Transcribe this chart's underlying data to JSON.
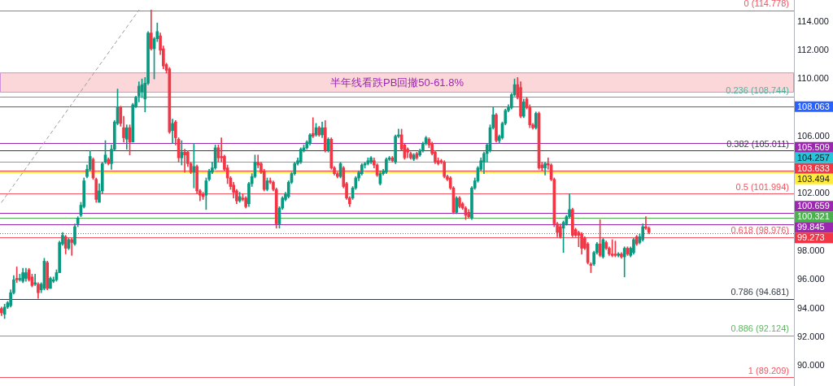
{
  "chart_data": {
    "type": "candlestick",
    "categories": [
      null,
      null,
      null,
      null,
      null,
      null,
      null,
      null,
      null,
      null,
      null,
      null,
      null,
      null,
      null,
      null,
      null,
      null,
      null,
      null,
      null,
      null,
      null,
      null,
      null,
      null,
      null,
      null,
      null,
      null,
      null,
      null,
      null,
      null,
      null,
      null,
      null,
      null,
      null,
      null,
      null,
      null,
      null,
      null,
      null,
      null,
      null,
      null,
      null,
      null,
      null,
      null,
      null,
      null,
      null,
      null,
      null,
      null,
      null,
      null,
      null,
      null,
      null,
      null,
      null,
      null,
      null,
      null,
      null,
      null,
      null,
      null,
      null,
      null,
      null,
      null,
      null,
      null,
      null,
      null,
      null,
      null,
      null,
      null,
      null,
      null,
      null,
      null,
      null,
      null,
      null,
      null,
      null,
      null,
      null,
      null,
      null,
      null,
      null,
      null,
      null,
      null,
      null,
      null,
      null,
      null,
      null,
      null,
      null,
      null,
      null,
      null,
      null,
      null,
      null,
      null,
      null,
      null,
      null,
      null,
      null,
      null,
      null,
      null,
      null,
      null,
      null,
      null,
      null,
      null,
      null,
      null,
      null,
      null,
      null,
      null,
      null,
      null,
      null,
      null,
      null,
      null,
      null,
      null,
      null,
      null,
      null,
      null,
      null,
      null,
      null,
      null,
      null,
      null,
      null,
      null,
      null,
      null,
      null,
      null,
      null,
      null,
      null,
      null,
      null,
      null,
      null,
      null,
      null,
      null,
      null,
      null,
      null,
      null,
      null,
      null,
      null,
      null,
      null,
      null,
      null,
      null,
      null,
      null,
      null,
      null,
      null,
      null,
      null,
      null,
      null,
      null,
      null,
      null,
      null,
      null,
      null,
      null,
      null,
      null,
      null,
      null,
      null,
      null,
      null,
      null,
      null,
      null,
      null,
      null,
      null,
      null,
      null,
      null,
      null,
      null,
      null,
      null,
      null,
      null,
      null,
      null,
      null,
      null,
      null,
      null,
      null,
      null,
      null,
      null,
      null,
      null,
      null,
      null,
      null,
      null,
      null,
      null,
      null,
      null,
      null,
      null,
      null,
      null,
      null,
      null,
      null,
      null,
      null,
      null,
      null,
      null,
      null,
      null,
      null,
      null,
      null,
      null,
      null,
      null
    ],
    "ohlc": [
      [
        94.0,
        94.1,
        93.5,
        93.7
      ],
      [
        93.6,
        94.3,
        93.3,
        94.1
      ],
      [
        94.1,
        94.5,
        94.0,
        94.4
      ],
      [
        94.2,
        95.3,
        94.1,
        95.1
      ],
      [
        95.1,
        96.3,
        95.0,
        96.0
      ],
      [
        96.1,
        96.9,
        95.8,
        96.0
      ],
      [
        96.0,
        96.4,
        95.9,
        96.1
      ],
      [
        95.9,
        96.8,
        95.8,
        96.5
      ],
      [
        96.1,
        96.8,
        95.9,
        96.5
      ],
      [
        96.7,
        96.8,
        95.9,
        96.0
      ],
      [
        96.2,
        96.4,
        95.5,
        95.6
      ],
      [
        95.7,
        96.4,
        95.6,
        95.8
      ],
      [
        95.7,
        95.8,
        94.7,
        95.1
      ],
      [
        95.3,
        95.8,
        95.1,
        95.7
      ],
      [
        95.4,
        97.5,
        95.3,
        97.3
      ],
      [
        97.2,
        97.3,
        95.3,
        95.4
      ],
      [
        95.4,
        96.2,
        95.4,
        96.1
      ],
      [
        95.9,
        96.2,
        95.8,
        96.0
      ],
      [
        96.0,
        96.7,
        95.9,
        96.5
      ],
      [
        96.5,
        98.7,
        96.5,
        98.6
      ],
      [
        98.5,
        99.3,
        98.4,
        99.1
      ],
      [
        99.0,
        99.1,
        97.8,
        98.2
      ],
      [
        98.2,
        98.9,
        98.1,
        98.8
      ],
      [
        98.8,
        98.9,
        97.7,
        98.6
      ],
      [
        98.5,
        99.9,
        98.4,
        99.7
      ],
      [
        99.9,
        100.4,
        99.7,
        100.3
      ],
      [
        100.5,
        101.4,
        100.4,
        101.2
      ],
      [
        101.1,
        103.1,
        101.0,
        102.9
      ],
      [
        103.2,
        104.0,
        103.1,
        103.7
      ],
      [
        103.7,
        105.0,
        103.6,
        104.6
      ],
      [
        104.4,
        104.5,
        103.0,
        103.1
      ],
      [
        103.0,
        103.1,
        101.4,
        101.6
      ],
      [
        101.4,
        102.7,
        101.4,
        102.2
      ],
      [
        102.2,
        104.2,
        102.0,
        104.1
      ],
      [
        104.2,
        105.7,
        104.1,
        104.7
      ],
      [
        104.4,
        104.5,
        104.0,
        104.1
      ],
      [
        104.1,
        105.4,
        103.7,
        105.1
      ],
      [
        105.1,
        107.1,
        105.0,
        107.0
      ],
      [
        106.9,
        109.3,
        106.8,
        108.0
      ],
      [
        108.0,
        108.1,
        106.7,
        106.9
      ],
      [
        106.6,
        107.4,
        105.6,
        105.9
      ],
      [
        105.8,
        106.8,
        105.1,
        106.6
      ],
      [
        106.6,
        106.8,
        104.7,
        105.6
      ],
      [
        105.6,
        108.3,
        105.6,
        108.2
      ],
      [
        108.1,
        108.8,
        108.0,
        108.7
      ],
      [
        108.8,
        109.8,
        108.4,
        109.5
      ],
      [
        109.1,
        110.0,
        108.7,
        109.6
      ],
      [
        108.6,
        110.1,
        107.7,
        109.7
      ],
      [
        109.7,
        113.3,
        109.6,
        113.2
      ],
      [
        113.2,
        114.8,
        112.0,
        112.1
      ],
      [
        112.1,
        112.9,
        110.0,
        112.8
      ],
      [
        112.8,
        113.9,
        112.6,
        113.3
      ],
      [
        113.0,
        113.2,
        111.7,
        112.0
      ],
      [
        112.1,
        112.3,
        110.7,
        110.9
      ],
      [
        111.0,
        111.1,
        110.4,
        110.6
      ],
      [
        110.7,
        110.8,
        106.2,
        106.3
      ],
      [
        106.4,
        107.2,
        105.5,
        106.9
      ],
      [
        107.0,
        107.1,
        105.4,
        105.9
      ],
      [
        105.8,
        105.9,
        104.2,
        104.5
      ],
      [
        104.5,
        105.7,
        104.0,
        104.9
      ],
      [
        104.9,
        105.1,
        103.5,
        104.7
      ],
      [
        104.9,
        105.0,
        103.9,
        104.1
      ],
      [
        104.1,
        104.2,
        103.4,
        103.5
      ],
      [
        103.5,
        105.5,
        102.4,
        103.9
      ],
      [
        103.9,
        104.0,
        102.0,
        102.2
      ],
      [
        102.2,
        102.3,
        101.5,
        101.9
      ],
      [
        102.0,
        102.1,
        101.6,
        101.8
      ],
      [
        101.9,
        103.1,
        100.9,
        102.9
      ],
      [
        103.0,
        103.7,
        102.9,
        103.6
      ],
      [
        103.5,
        104.2,
        103.4,
        103.8
      ],
      [
        103.8,
        105.4,
        103.7,
        105.2
      ],
      [
        105.2,
        105.4,
        104.2,
        104.5
      ],
      [
        104.6,
        105.9,
        104.2,
        104.5
      ],
      [
        104.6,
        104.7,
        103.6,
        103.7
      ],
      [
        103.8,
        104.0,
        102.7,
        103.1
      ],
      [
        103.1,
        103.2,
        102.3,
        102.5
      ],
      [
        102.6,
        102.8,
        101.7,
        102.1
      ],
      [
        102.2,
        102.3,
        101.3,
        101.5
      ],
      [
        101.5,
        102.1,
        101.4,
        101.8
      ],
      [
        101.7,
        102.0,
        101.5,
        101.6
      ],
      [
        101.7,
        101.8,
        101.0,
        101.1
      ],
      [
        101.3,
        102.8,
        101.1,
        102.7
      ],
      [
        102.7,
        103.4,
        102.5,
        103.2
      ],
      [
        103.2,
        104.7,
        103.1,
        104.2
      ],
      [
        104.2,
        104.7,
        103.8,
        104.0
      ],
      [
        104.1,
        104.2,
        103.4,
        103.5
      ],
      [
        103.6,
        103.7,
        102.2,
        102.3
      ],
      [
        102.3,
        103.1,
        102.2,
        102.9
      ],
      [
        102.9,
        103.1,
        102.7,
        102.8
      ],
      [
        102.8,
        102.9,
        102.2,
        102.3
      ],
      [
        102.3,
        102.4,
        99.6,
        99.9
      ],
      [
        99.9,
        101.1,
        99.6,
        101.0
      ],
      [
        101.0,
        101.8,
        100.9,
        101.7
      ],
      [
        101.6,
        102.1,
        101.5,
        102.0
      ],
      [
        101.8,
        102.9,
        101.7,
        102.8
      ],
      [
        102.8,
        103.5,
        102.7,
        103.4
      ],
      [
        103.4,
        104.2,
        103.3,
        104.1
      ],
      [
        104.1,
        104.5,
        104.0,
        104.3
      ],
      [
        104.2,
        105.2,
        104.1,
        105.1
      ],
      [
        105.0,
        105.4,
        104.9,
        105.2
      ],
      [
        105.2,
        105.7,
        105.1,
        105.6
      ],
      [
        105.5,
        106.2,
        105.4,
        106.1
      ],
      [
        106.2,
        107.3,
        105.9,
        106.0
      ],
      [
        106.1,
        106.9,
        106.0,
        106.6
      ],
      [
        106.6,
        106.7,
        106.0,
        106.1
      ],
      [
        106.1,
        107.0,
        105.9,
        106.6
      ],
      [
        106.6,
        107.1,
        104.9,
        105.0
      ],
      [
        105.0,
        105.9,
        104.9,
        105.8
      ],
      [
        105.8,
        105.9,
        103.7,
        103.8
      ],
      [
        103.8,
        103.9,
        103.3,
        103.4
      ],
      [
        103.4,
        103.5,
        103.1,
        103.2
      ],
      [
        103.2,
        104.2,
        103.1,
        104.1
      ],
      [
        103.8,
        103.9,
        102.4,
        102.5
      ],
      [
        102.7,
        102.8,
        101.6,
        101.7
      ],
      [
        101.7,
        101.8,
        101.1,
        101.3
      ],
      [
        101.7,
        102.5,
        101.6,
        102.4
      ],
      [
        102.4,
        103.2,
        102.3,
        103.1
      ],
      [
        103.1,
        103.6,
        102.9,
        103.5
      ],
      [
        103.4,
        104.1,
        103.3,
        104.0
      ],
      [
        104.0,
        104.2,
        103.8,
        104.1
      ],
      [
        104.1,
        104.5,
        104.0,
        104.3
      ],
      [
        104.2,
        104.6,
        104.1,
        104.5
      ],
      [
        104.3,
        104.5,
        103.8,
        104.0
      ],
      [
        104.0,
        104.1,
        103.2,
        103.3
      ],
      [
        102.7,
        103.6,
        102.6,
        103.4
      ],
      [
        103.4,
        103.7,
        103.3,
        103.6
      ],
      [
        103.5,
        104.5,
        103.4,
        104.4
      ],
      [
        104.4,
        104.6,
        104.3,
        104.5
      ],
      [
        104.5,
        104.6,
        104.2,
        104.3
      ],
      [
        104.2,
        106.1,
        104.1,
        106.0
      ],
      [
        106.0,
        106.5,
        105.9,
        106.1
      ],
      [
        106.1,
        106.5,
        105.0,
        105.1
      ],
      [
        105.4,
        105.5,
        104.4,
        104.5
      ],
      [
        105.1,
        105.2,
        104.5,
        104.9
      ],
      [
        104.8,
        104.9,
        104.4,
        104.5
      ],
      [
        104.4,
        104.8,
        104.3,
        104.7
      ],
      [
        104.8,
        104.9,
        104.4,
        104.5
      ],
      [
        104.7,
        105.1,
        104.6,
        105.0
      ],
      [
        105.0,
        105.6,
        104.9,
        105.5
      ],
      [
        105.5,
        106.0,
        105.4,
        105.9
      ],
      [
        105.8,
        105.9,
        105.2,
        105.4
      ],
      [
        105.5,
        105.6,
        104.7,
        104.8
      ],
      [
        104.9,
        105.0,
        104.1,
        104.2
      ],
      [
        104.3,
        104.5,
        104.0,
        104.1
      ],
      [
        104.3,
        104.4,
        104.1,
        104.2
      ],
      [
        104.2,
        104.3,
        103.1,
        103.2
      ],
      [
        103.2,
        103.3,
        102.9,
        103.0
      ],
      [
        103.1,
        103.2,
        102.3,
        102.4
      ],
      [
        102.4,
        102.5,
        100.6,
        100.7
      ],
      [
        100.7,
        101.8,
        100.6,
        101.7
      ],
      [
        101.7,
        101.8,
        101.0,
        101.1
      ],
      [
        101.3,
        101.4,
        100.9,
        101.0
      ],
      [
        101.0,
        101.1,
        100.2,
        100.5
      ],
      [
        100.7,
        100.9,
        100.3,
        100.4
      ],
      [
        100.3,
        102.5,
        100.2,
        102.4
      ],
      [
        102.4,
        103.1,
        102.3,
        102.9
      ],
      [
        102.9,
        103.9,
        102.8,
        103.8
      ],
      [
        103.7,
        104.5,
        103.6,
        104.3
      ],
      [
        104.2,
        104.9,
        103.4,
        104.8
      ],
      [
        104.8,
        105.5,
        104.2,
        105.4
      ],
      [
        105.0,
        106.8,
        104.9,
        106.6
      ],
      [
        106.6,
        108.0,
        106.5,
        107.5
      ],
      [
        107.5,
        107.6,
        105.6,
        105.7
      ],
      [
        105.7,
        106.1,
        105.5,
        106.0
      ],
      [
        105.9,
        107.0,
        105.8,
        106.9
      ],
      [
        106.9,
        107.9,
        106.8,
        107.8
      ],
      [
        107.8,
        108.2,
        107.7,
        108.0
      ],
      [
        108.0,
        109.0,
        107.9,
        108.9
      ],
      [
        108.9,
        110.0,
        108.8,
        109.6
      ],
      [
        109.6,
        110.1,
        108.6,
        108.7
      ],
      [
        109.4,
        109.8,
        107.3,
        107.4
      ],
      [
        107.4,
        108.6,
        107.3,
        108.4
      ],
      [
        108.6,
        108.7,
        107.9,
        108.0
      ],
      [
        108.0,
        108.2,
        106.6,
        106.8
      ],
      [
        106.8,
        106.9,
        106.5,
        106.6
      ],
      [
        106.6,
        107.7,
        106.5,
        107.6
      ],
      [
        107.6,
        107.7,
        103.7,
        103.8
      ],
      [
        104.0,
        104.2,
        103.6,
        103.8
      ],
      [
        103.8,
        104.2,
        103.3,
        104.1
      ],
      [
        104.1,
        104.5,
        103.7,
        104.0
      ],
      [
        104.0,
        104.1,
        102.9,
        103.0
      ],
      [
        103.0,
        103.1,
        99.7,
        99.9
      ],
      [
        99.9,
        100.0,
        99.0,
        99.3
      ],
      [
        99.7,
        99.9,
        98.9,
        99.0
      ],
      [
        99.6,
        100.1,
        97.9,
        100.0
      ],
      [
        99.9,
        100.5,
        99.8,
        100.4
      ],
      [
        100.4,
        102.0,
        100.3,
        100.9
      ],
      [
        100.9,
        101.0,
        99.0,
        99.1
      ],
      [
        99.5,
        99.6,
        99.0,
        99.1
      ],
      [
        99.3,
        99.4,
        98.3,
        99.1
      ],
      [
        99.2,
        99.3,
        97.8,
        98.2
      ],
      [
        98.9,
        99.0,
        98.1,
        98.2
      ],
      [
        98.5,
        98.6,
        97.1,
        97.2
      ],
      [
        97.1,
        97.2,
        96.5,
        97.0
      ],
      [
        97.1,
        98.0,
        97.0,
        97.9
      ],
      [
        97.9,
        98.6,
        97.8,
        98.5
      ],
      [
        98.5,
        100.2,
        97.6,
        97.7
      ],
      [
        97.6,
        98.9,
        97.5,
        98.8
      ],
      [
        98.6,
        98.7,
        98.1,
        98.2
      ],
      [
        98.2,
        98.3,
        97.7,
        97.8
      ],
      [
        97.8,
        98.8,
        97.6,
        97.7
      ],
      [
        97.8,
        98.7,
        97.6,
        97.7
      ],
      [
        97.7,
        97.9,
        97.6,
        97.8
      ],
      [
        97.8,
        97.9,
        97.5,
        97.6
      ],
      [
        97.6,
        98.3,
        96.2,
        98.2
      ],
      [
        98.2,
        98.3,
        97.7,
        97.8
      ],
      [
        97.7,
        98.3,
        97.6,
        98.2
      ],
      [
        97.9,
        98.9,
        97.8,
        98.8
      ],
      [
        99.0,
        99.1,
        98.4,
        98.5
      ],
      [
        98.6,
        99.2,
        98.5,
        99.0
      ],
      [
        98.8,
        99.9,
        98.7,
        99.7
      ],
      [
        99.7,
        100.4,
        99.5,
        99.6
      ],
      [
        99.6,
        99.7,
        99.2,
        99.3
      ],
      null,
      null,
      null,
      null,
      null,
      null,
      null,
      null,
      null,
      null,
      null,
      null,
      null,
      null,
      null,
      null,
      null,
      null,
      null,
      null,
      null,
      null,
      null,
      null,
      null,
      null,
      null,
      null,
      null,
      null,
      null,
      null,
      null,
      null,
      null,
      null,
      null,
      null,
      null,
      null,
      null,
      null,
      null,
      null,
      null,
      null,
      null
    ],
    "colors": [
      "#f23645",
      "#089981",
      "#089981",
      "#089981",
      "#089981",
      "#f23645",
      "#089981",
      "#089981",
      "#089981",
      "#f23645",
      "#f23645",
      "#089981",
      "#f23645",
      "#089981",
      "#089981",
      "#f23645",
      "#089981",
      "#089981",
      "#089981",
      "#089981",
      "#089981",
      "#f23645",
      "#089981",
      "#f23645",
      "#089981",
      "#089981",
      "#089981",
      "#089981",
      "#089981",
      "#089981",
      "#f23645",
      "#f23645",
      "#089981",
      "#089981",
      "#089981",
      "#f23645",
      "#089981",
      "#089981",
      "#089981",
      "#f23645",
      "#f23645",
      "#089981",
      "#f23645",
      "#089981",
      "#089981",
      "#089981",
      "#089981",
      "#089981",
      "#089981",
      "#f23645",
      "#089981",
      "#089981",
      "#f23645",
      "#f23645",
      "#f23645",
      "#f23645",
      "#089981",
      "#f23645",
      "#f23645",
      "#089981",
      "#f23645",
      "#f23645",
      "#f23645",
      "#089981",
      "#f23645",
      "#f23645",
      "#f23645",
      "#089981",
      "#089981",
      "#089981",
      "#089981",
      "#f23645",
      "#f23645",
      "#f23645",
      "#f23645",
      "#f23645",
      "#f23645",
      "#f23645",
      "#089981",
      "#f23645",
      "#f23645",
      "#089981",
      "#089981",
      "#089981",
      "#f23645",
      "#f23645",
      "#f23645",
      "#089981",
      "#f23645",
      "#f23645",
      "#f23645",
      "#089981",
      "#089981",
      "#089981",
      "#089981",
      "#089981",
      "#089981",
      "#089981",
      "#089981",
      "#089981",
      "#089981",
      "#089981",
      "#f23645",
      "#089981",
      "#f23645",
      "#089981",
      "#f23645",
      "#089981",
      "#f23645",
      "#f23645",
      "#f23645",
      "#089981",
      "#f23645",
      "#f23645",
      "#f23645",
      "#089981",
      "#089981",
      "#089981",
      "#089981",
      "#089981",
      "#089981",
      "#089981",
      "#f23645",
      "#f23645",
      "#089981",
      "#089981",
      "#089981",
      "#089981",
      "#f23645",
      "#089981",
      "#089981",
      "#f23645",
      "#f23645",
      "#f23645",
      "#f23645",
      "#089981",
      "#f23645",
      "#089981",
      "#089981",
      "#089981",
      "#f23645",
      "#f23645",
      "#f23645",
      "#f23645",
      "#f23645",
      "#f23645",
      "#f23645",
      "#f23645",
      "#f23645",
      "#089981",
      "#f23645",
      "#f23645",
      "#f23645",
      "#f23645",
      "#089981",
      "#089981",
      "#089981",
      "#089981",
      "#089981",
      "#089981",
      "#089981",
      "#089981",
      "#f23645",
      "#089981",
      "#089981",
      "#089981",
      "#089981",
      "#089981",
      "#089981",
      "#f23645",
      "#f23645",
      "#089981",
      "#f23645",
      "#f23645",
      "#f23645",
      "#089981",
      "#f23645",
      "#f23645",
      "#089981",
      "#f23645",
      "#f23645",
      "#f23645",
      "#f23645",
      "#f23645",
      "#089981",
      "#089981",
      "#089981",
      "#f23645",
      "#f23645",
      "#f23645",
      "#f23645",
      "#f23645",
      "#f23645",
      "#f23645",
      "#089981",
      "#089981",
      "#f23645",
      "#089981",
      "#f23645",
      "#f23645",
      "#f23645",
      "#f23645",
      "#089981",
      "#f23645",
      "#089981",
      "#f23645",
      "#089981",
      "#089981",
      "#f23645",
      "#089981",
      "#089981",
      "#f23645",
      "#f23645",
      null,
      null,
      null,
      null,
      null,
      null,
      null,
      null,
      null,
      null,
      null,
      null,
      null,
      null,
      null,
      null,
      null,
      null,
      null,
      null,
      null,
      null,
      null,
      null,
      null,
      null,
      null,
      null,
      null,
      null,
      null,
      null,
      null,
      null,
      null,
      null,
      null,
      null,
      null,
      null,
      null,
      null,
      null,
      null,
      null,
      null,
      null
    ],
    "series": [
      {
        "type": "line",
        "color": "#9e9e9e",
        "line_style": "dashed",
        "values": [
          101.4,
          null,
          null,
          null,
          null,
          null,
          null,
          null,
          null,
          null,
          null,
          null,
          null,
          null,
          null,
          null,
          null,
          null,
          null,
          null,
          null,
          null,
          null,
          null,
          null,
          null,
          null,
          null,
          null,
          null,
          null,
          null,
          null,
          null,
          null,
          null,
          null,
          null,
          null,
          null,
          null,
          null,
          null,
          null,
          null,
          114.8,
          null,
          null,
          null,
          null,
          null,
          null,
          null,
          null,
          null,
          null,
          null,
          null,
          null,
          null,
          null,
          null,
          null,
          null,
          null,
          null,
          null,
          null,
          null,
          null,
          null,
          null,
          null,
          null,
          null,
          null,
          null,
          null,
          null,
          null,
          null,
          null,
          null,
          null,
          null,
          null,
          null,
          null,
          null,
          null,
          null,
          null,
          null,
          null,
          null,
          null,
          null,
          null,
          null,
          null,
          null,
          null,
          null,
          null,
          null,
          null,
          null,
          null,
          null,
          null,
          null,
          null,
          null,
          null,
          null,
          null,
          null,
          null,
          null,
          null,
          null,
          null,
          null,
          null,
          null,
          null,
          null,
          null,
          null,
          null,
          null,
          null,
          null,
          null,
          null,
          null,
          null,
          null,
          null,
          null,
          null,
          null,
          null,
          null,
          null,
          null,
          null,
          null,
          null,
          null,
          null,
          null,
          null,
          null,
          null,
          null,
          null,
          null,
          null,
          null,
          null,
          null,
          null,
          null,
          null,
          null,
          null,
          null,
          null,
          null,
          null,
          null,
          null,
          null,
          null,
          null,
          null,
          null,
          null,
          null,
          null,
          null,
          null,
          null,
          null,
          null,
          null,
          null,
          null,
          null,
          null,
          null,
          null,
          null,
          null,
          null,
          null,
          null,
          null,
          null,
          null,
          null,
          null,
          null,
          null,
          null,
          null,
          null,
          null,
          null,
          null,
          null,
          null,
          null,
          null,
          null,
          null,
          null,
          null,
          null,
          null,
          null,
          null,
          null,
          null,
          null,
          null,
          null,
          null,
          null,
          null,
          null,
          null,
          null,
          null,
          null,
          null,
          null,
          null,
          null,
          null,
          null,
          null,
          null,
          null,
          null,
          null,
          null,
          null,
          null,
          null,
          null,
          null,
          null,
          null,
          null,
          null,
          null,
          null,
          null
        ]
      }
    ],
    "ylim": [
      88.6,
      115.5
    ],
    "yticks": [
      {
        "value": 114,
        "label": "114.000"
      },
      {
        "value": 112,
        "label": "112.000"
      },
      {
        "value": 110,
        "label": "110.000"
      },
      {
        "value": 106,
        "label": "106.000"
      },
      {
        "value": 102,
        "label": "102.000"
      },
      {
        "value": 98,
        "label": "98.000"
      },
      {
        "value": 96,
        "label": "96.000"
      },
      {
        "value": 94,
        "label": "94.000"
      },
      {
        "value": 92,
        "label": "92.000"
      },
      {
        "value": 90,
        "label": "90.000"
      }
    ],
    "tick_labels": "y",
    "ref_lines": [
      {
        "axis": "y",
        "value": 114.778,
        "color": "#f7525f"
      },
      {
        "axis": "y",
        "value": 108.744,
        "color": "#4fb39c"
      },
      {
        "axis": "y",
        "value": 105.011,
        "color": "#363a45"
      },
      {
        "axis": "y",
        "value": 101.994,
        "color": "#f7525f"
      },
      {
        "axis": "y",
        "value": 98.976,
        "color": "#f7525f"
      },
      {
        "axis": "y",
        "value": 94.681,
        "color": "#363a45"
      },
      {
        "axis": "y",
        "value": 92.124,
        "color": "#5fb662"
      },
      {
        "axis": "y",
        "value": 89.209,
        "color": "#f7525f"
      },
      {
        "axis": "y",
        "value": 108.063,
        "label": "108.063",
        "color": "#2962ff"
      },
      {
        "axis": "y",
        "value": 105.509,
        "label": "105.509",
        "color": "#9c27b0"
      },
      {
        "axis": "y",
        "value": 104.257,
        "label": "104.257",
        "color": "#26c6da"
      },
      {
        "axis": "y",
        "value": 103.633,
        "label": "103.633",
        "color": "#f23645"
      },
      {
        "axis": "y",
        "value": 103.494,
        "label": "103.494",
        "color": "#ffeb3b"
      },
      {
        "axis": "y",
        "value": 100.659,
        "label": "100.659",
        "color": "#9c27b0"
      },
      {
        "axis": "y",
        "value": 100.321,
        "label": "100.321",
        "color": "#4caf50"
      },
      {
        "axis": "y",
        "value": 99.845,
        "label": "99.845",
        "color": "#9c27b0"
      },
      {
        "axis": "y",
        "value": 99.273,
        "label": "99.273",
        "color": "#f23645",
        "line_style": "dotted"
      }
    ],
    "bands": [
      {
        "axis": "y",
        "from": 109.05,
        "to": 110.45,
        "label": "半年线看跌PB回撤50-61.8%",
        "color": "#f23645"
      }
    ],
    "annotations": [
      {
        "text": "0 (114.778)",
        "y": 114.778
      },
      {
        "text": "0.236 (108.744)",
        "y": 108.744
      },
      {
        "text": "0.382 (105.011)",
        "y": 105.011
      },
      {
        "text": "0.5 (101.994)",
        "y": 101.994
      },
      {
        "text": "0.618 (98.976)",
        "y": 98.976
      },
      {
        "text": "0.786 (94.681)",
        "y": 94.681
      },
      {
        "text": "0.886 (92.124)",
        "y": 92.124
      },
      {
        "text": "1 (89.209)",
        "y": 89.209
      }
    ]
  }
}
